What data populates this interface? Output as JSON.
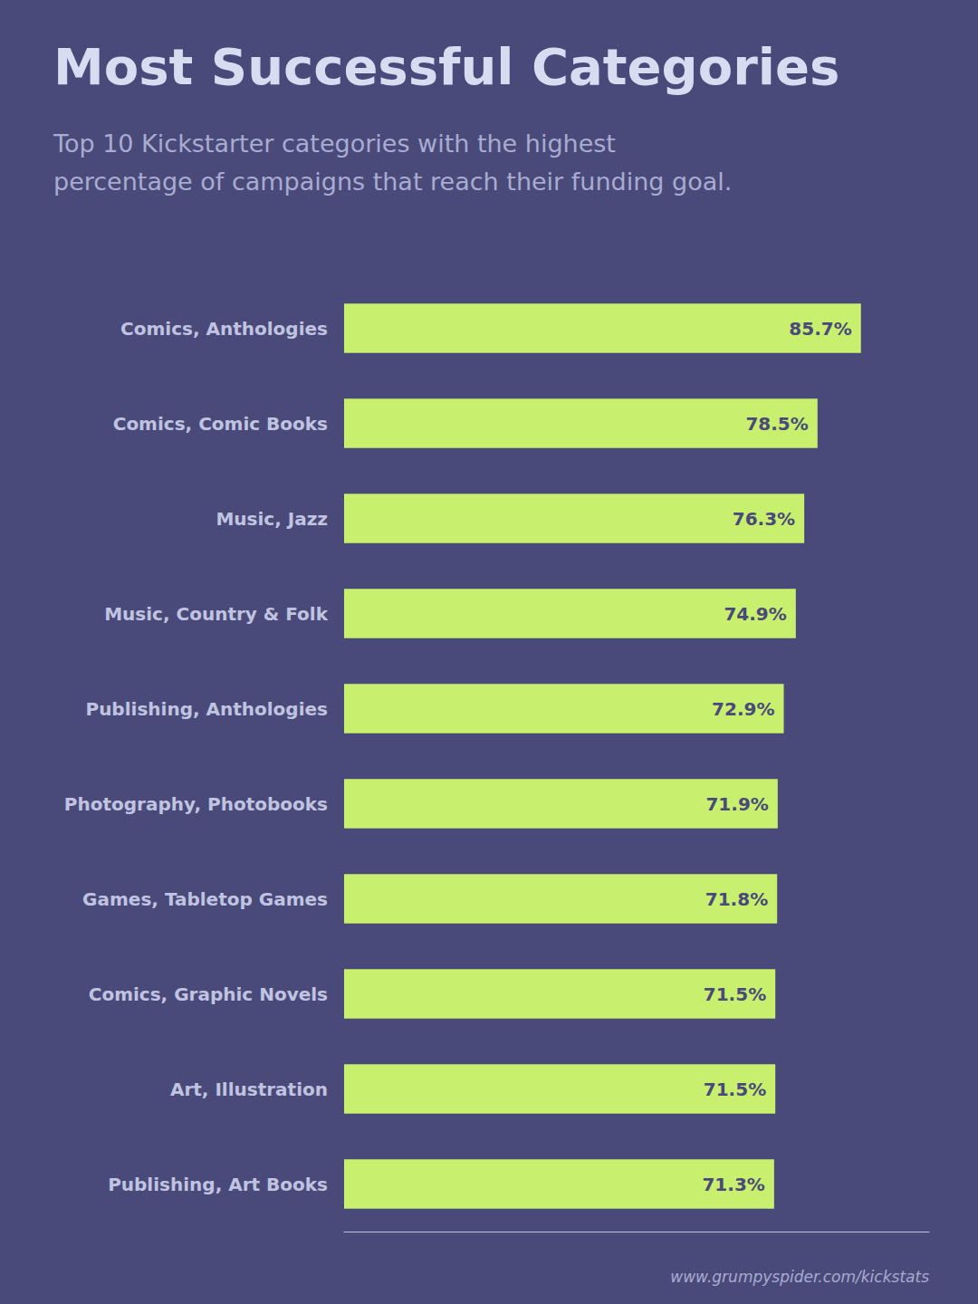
{
  "chart_data": {
    "type": "bar",
    "orientation": "horizontal",
    "title": "Most Successful Categories",
    "subtitle": "Top 10 Kickstarter categories with the highest\npercentage of campaigns that reach their funding goal.",
    "annotations": [
      "www.grumpyspider.com/kickstats"
    ],
    "categories": [
      "Comics, Anthologies",
      "Comics, Comic Books",
      "Music, Jazz",
      "Music, Country & Folk",
      "Publishing, Anthologies",
      "Photography, Photobooks",
      "Games, Tabletop Games",
      "Comics, Graphic Novels",
      "Art, Illustration",
      "Publishing, Art Books"
    ],
    "values": [
      85.7,
      78.5,
      76.3,
      74.9,
      72.9,
      71.9,
      71.8,
      71.5,
      71.5,
      71.3
    ],
    "value_labels": [
      "85.7%",
      "78.5%",
      "76.3%",
      "74.9%",
      "72.9%",
      "71.9%",
      "71.8%",
      "71.5%",
      "71.5%",
      "71.3%"
    ],
    "data_labels": true,
    "color": "#c8f06e",
    "xlim": [
      0,
      97
    ],
    "grid": false,
    "tick_labels": "y"
  }
}
